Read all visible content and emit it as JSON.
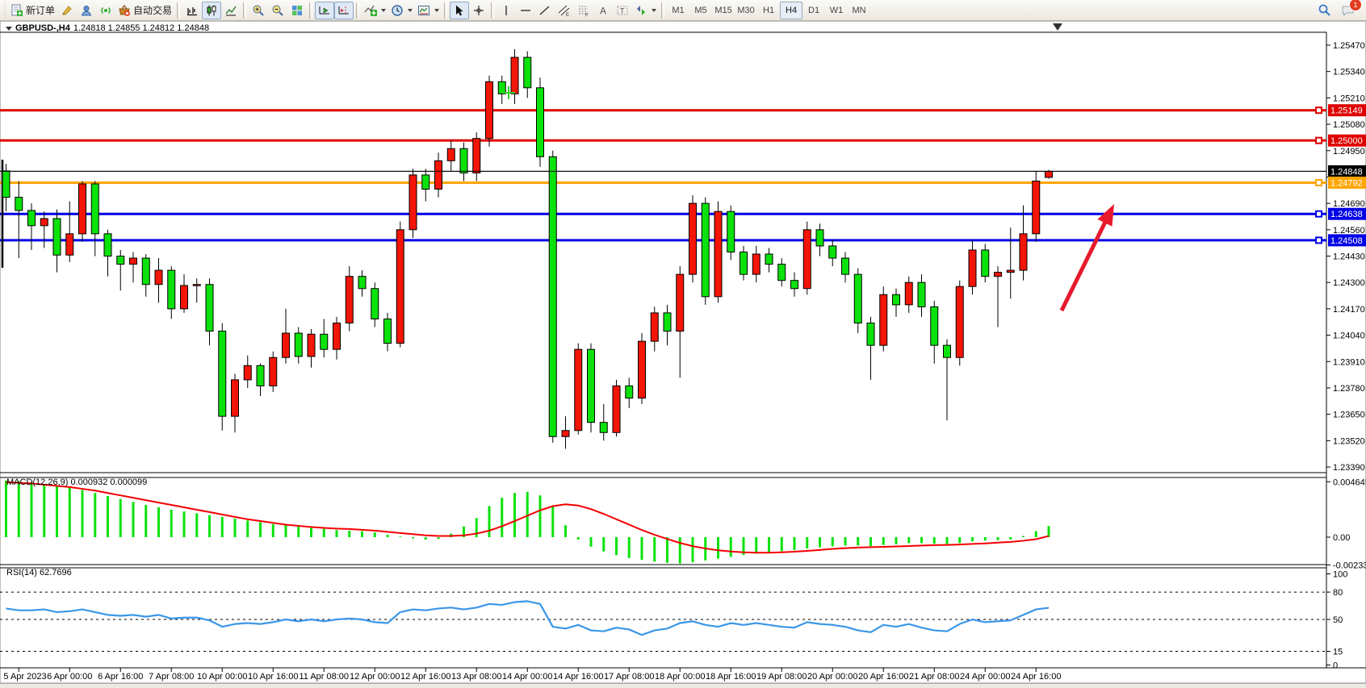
{
  "toolbar": {
    "new_order_label": "新订单",
    "autotrade_label": "自动交易",
    "timeframes": [
      "M1",
      "M5",
      "M15",
      "M30",
      "H1",
      "H4",
      "D1",
      "W1",
      "MN"
    ],
    "active_timeframe": "H4",
    "notification_count": "1"
  },
  "window": {
    "symbol_period": "GBPUSD-,H4",
    "ohlc_line": "1.24818 1.24855 1.24812 1.24848"
  },
  "chart_data": {
    "type": "candlestick",
    "symbol": "GBPUSD-",
    "timeframe": "H4",
    "title": "GBPUSD-,H4  1.24818 1.24855 1.24812 1.24848",
    "ohlc_display": {
      "open": 1.24818,
      "high": 1.24855,
      "low": 1.24812,
      "close": 1.24848
    },
    "bull_color": "#F31507",
    "bear_color": "#0BE20B",
    "ylim": [
      1.2339,
      1.2547
    ],
    "grid": false,
    "candles": [
      [
        "5 Apr 04:00",
        1.2485,
        1.24885,
        1.2465,
        1.2472
      ],
      [
        "5 Apr 08:00",
        1.2472,
        1.248,
        1.2442,
        1.24655
      ],
      [
        "5 Apr 12:00",
        1.24655,
        1.2469,
        1.2446,
        1.2458
      ],
      [
        "5 Apr 16:00",
        1.2458,
        1.2465,
        1.2447,
        1.24615
      ],
      [
        "5 Apr 20:00",
        1.24615,
        1.2466,
        1.2435,
        1.24435
      ],
      [
        "6 Apr 00:00",
        1.24435,
        1.247,
        1.244,
        1.2454
      ],
      [
        "6 Apr 04:00",
        1.2454,
        1.248,
        1.245,
        1.24786
      ],
      [
        "6 Apr 08:00",
        1.24786,
        1.248,
        1.2443,
        1.2454
      ],
      [
        "6 Apr 12:00",
        1.2454,
        1.2456,
        1.2433,
        1.2443
      ],
      [
        "6 Apr 16:00",
        1.2443,
        1.2446,
        1.2426,
        1.2439
      ],
      [
        "6 Apr 20:00",
        1.2439,
        1.2445,
        1.243,
        1.2442
      ],
      [
        "7 Apr 00:00",
        1.2442,
        1.2444,
        1.2423,
        1.2429
      ],
      [
        "7 Apr 04:00",
        1.2429,
        1.2442,
        1.242,
        1.2436
      ],
      [
        "7 Apr 08:00",
        1.2436,
        1.2438,
        1.2412,
        1.2417
      ],
      [
        "7 Apr 12:00",
        1.2417,
        1.2434,
        1.2415,
        1.24285
      ],
      [
        "7 Apr 16:00",
        1.24285,
        1.2432,
        1.242,
        1.2429
      ],
      [
        "7 Apr 20:00",
        1.2429,
        1.2432,
        1.2399,
        1.2406
      ],
      [
        "10 Apr 00:00",
        1.2406,
        1.241,
        1.2357,
        1.2364
      ],
      [
        "10 Apr 04:00",
        1.2364,
        1.2385,
        1.2356,
        1.2382
      ],
      [
        "10 Apr 08:00",
        1.2382,
        1.2394,
        1.2378,
        1.2389
      ],
      [
        "10 Apr 12:00",
        1.2389,
        1.239,
        1.2374,
        1.2379
      ],
      [
        "10 Apr 16:00",
        1.2379,
        1.2396,
        1.2376,
        1.2393
      ],
      [
        "10 Apr 20:00",
        1.2393,
        1.2417,
        1.239,
        1.2405
      ],
      [
        "11 Apr 00:00",
        1.2405,
        1.2408,
        1.239,
        1.23935
      ],
      [
        "11 Apr 04:00",
        1.23935,
        1.2407,
        1.2388,
        1.24045
      ],
      [
        "11 Apr 08:00",
        1.24045,
        1.2412,
        1.2393,
        1.2397
      ],
      [
        "11 Apr 12:00",
        1.2397,
        1.2413,
        1.2392,
        1.241
      ],
      [
        "11 Apr 16:00",
        1.241,
        1.2438,
        1.2406,
        1.2433
      ],
      [
        "11 Apr 20:00",
        1.2433,
        1.2436,
        1.2423,
        1.2427
      ],
      [
        "12 Apr 00:00",
        1.2427,
        1.243,
        1.2408,
        1.2412
      ],
      [
        "12 Apr 04:00",
        1.2412,
        1.2415,
        1.2396,
        1.24
      ],
      [
        "12 Apr 08:00",
        1.24,
        1.246,
        1.2398,
        1.2456
      ],
      [
        "12 Apr 12:00",
        1.2456,
        1.2486,
        1.2452,
        1.2483
      ],
      [
        "12 Apr 16:00",
        1.2483,
        1.2486,
        1.247,
        1.2476
      ],
      [
        "12 Apr 20:00",
        1.2476,
        1.2494,
        1.2472,
        1.249
      ],
      [
        "13 Apr 00:00",
        1.249,
        1.25,
        1.2485,
        1.2496
      ],
      [
        "13 Apr 04:00",
        1.2496,
        1.2499,
        1.248,
        1.2484
      ],
      [
        "13 Apr 08:00",
        1.2484,
        1.2504,
        1.248,
        1.2501
      ],
      [
        "13 Apr 12:00",
        1.2501,
        1.2532,
        1.2497,
        1.2529
      ],
      [
        "13 Apr 16:00",
        1.2529,
        1.2532,
        1.2518,
        1.2523
      ],
      [
        "13 Apr 20:00",
        1.2523,
        1.2545,
        1.2518,
        1.2541
      ],
      [
        "14 Apr 00:00",
        1.2541,
        1.2544,
        1.2521,
        1.2526
      ],
      [
        "14 Apr 04:00",
        1.2526,
        1.2531,
        1.2487,
        1.2492
      ],
      [
        "14 Apr 08:00",
        1.2492,
        1.2495,
        1.2351,
        1.2354
      ],
      [
        "14 Apr 12:00",
        1.2354,
        1.2364,
        1.2348,
        1.2357
      ],
      [
        "14 Apr 16:00",
        1.2357,
        1.24,
        1.2355,
        1.2397
      ],
      [
        "14 Apr 20:00",
        1.2397,
        1.24,
        1.2356,
        1.2361
      ],
      [
        "17 Apr 00:00",
        1.2361,
        1.237,
        1.2352,
        1.2356
      ],
      [
        "17 Apr 04:00",
        1.2356,
        1.2382,
        1.2354,
        1.2379
      ],
      [
        "17 Apr 08:00",
        1.2379,
        1.2383,
        1.2368,
        1.2373
      ],
      [
        "17 Apr 12:00",
        1.2373,
        1.2405,
        1.237,
        1.2401
      ],
      [
        "17 Apr 16:00",
        1.2401,
        1.2418,
        1.2396,
        1.2415
      ],
      [
        "17 Apr 20:00",
        1.2415,
        1.2419,
        1.2399,
        1.2406
      ],
      [
        "18 Apr 00:00",
        1.2406,
        1.2438,
        1.2383,
        1.2434
      ],
      [
        "18 Apr 04:00",
        1.2434,
        1.2473,
        1.243,
        1.2469
      ],
      [
        "18 Apr 08:00",
        1.2469,
        1.2472,
        1.2419,
        1.2423
      ],
      [
        "18 Apr 12:00",
        1.2423,
        1.247,
        1.242,
        1.2465
      ],
      [
        "18 Apr 16:00",
        1.2465,
        1.2468,
        1.2441,
        1.2445
      ],
      [
        "18 Apr 20:00",
        1.2445,
        1.2448,
        1.2431,
        1.2434
      ],
      [
        "19 Apr 00:00",
        1.2434,
        1.2448,
        1.243,
        1.2444
      ],
      [
        "19 Apr 04:00",
        1.2444,
        1.2447,
        1.2435,
        1.2439
      ],
      [
        "19 Apr 08:00",
        1.2439,
        1.2442,
        1.2428,
        1.2431
      ],
      [
        "19 Apr 12:00",
        1.2431,
        1.2435,
        1.2423,
        1.2427
      ],
      [
        "19 Apr 16:00",
        1.2427,
        1.246,
        1.2424,
        1.2456
      ],
      [
        "19 Apr 20:00",
        1.2456,
        1.2459,
        1.2443,
        1.2448
      ],
      [
        "20 Apr 00:00",
        1.2448,
        1.2451,
        1.2438,
        1.2442
      ],
      [
        "20 Apr 04:00",
        1.2442,
        1.2445,
        1.243,
        1.2434
      ],
      [
        "20 Apr 08:00",
        1.2434,
        1.2437,
        1.2405,
        1.241
      ],
      [
        "20 Apr 12:00",
        1.241,
        1.2413,
        1.2382,
        1.2399
      ],
      [
        "20 Apr 16:00",
        1.2399,
        1.2428,
        1.2396,
        1.2424
      ],
      [
        "20 Apr 20:00",
        1.2424,
        1.2427,
        1.2413,
        1.2419
      ],
      [
        "21 Apr 00:00",
        1.2419,
        1.2433,
        1.2415,
        1.243
      ],
      [
        "21 Apr 04:00",
        1.243,
        1.2434,
        1.2413,
        1.2418
      ],
      [
        "21 Apr 08:00",
        1.2418,
        1.2421,
        1.239,
        1.2399
      ],
      [
        "21 Apr 12:00",
        1.2399,
        1.2402,
        1.2362,
        1.2393
      ],
      [
        "21 Apr 16:00",
        1.2393,
        1.2431,
        1.2389,
        1.2428
      ],
      [
        "21 Apr 20:00",
        1.2428,
        1.2451,
        1.2424,
        1.2446
      ],
      [
        "24 Apr 00:00",
        1.2446,
        1.2449,
        1.243,
        1.2433
      ],
      [
        "24 Apr 04:00",
        1.2433,
        1.2438,
        1.2408,
        1.2435
      ],
      [
        "24 Apr 08:00",
        1.2435,
        1.2457,
        1.2422,
        1.2436
      ],
      [
        "24 Apr 12:00",
        1.2436,
        1.2468,
        1.2431,
        1.2454
      ],
      [
        "24 Apr 16:00",
        1.2454,
        1.2485,
        1.245,
        1.248
      ],
      [
        "24 Apr 20:00",
        1.24818,
        1.24855,
        1.24812,
        1.24848
      ]
    ],
    "hlines": [
      {
        "price": 1.25149,
        "color": "#DE0000",
        "width": 3,
        "label": "1.25149",
        "marker": true
      },
      {
        "price": 1.25,
        "color": "#DE0000",
        "width": 3,
        "label": "1.25000",
        "marker": true
      },
      {
        "price": 1.24848,
        "color": "#000000",
        "width": 1,
        "label": "1.24848",
        "marker": false,
        "current": true
      },
      {
        "price": 1.24792,
        "color": "#FFA500",
        "width": 3,
        "label": "1.24792",
        "marker": true
      },
      {
        "price": 1.24638,
        "color": "#0000E6",
        "width": 3,
        "label": "1.24638",
        "marker": true
      },
      {
        "price": 1.24508,
        "color": "#0000E6",
        "width": 3,
        "label": "1.24508",
        "marker": true
      }
    ],
    "y_axis_ticks": [
      "1.25470",
      "1.25340",
      "1.25210",
      "1.25080",
      "1.24950",
      "1.24820",
      "1.24690",
      "1.24560",
      "1.24430",
      "1.24300",
      "1.24170",
      "1.24040",
      "1.23910",
      "1.23780",
      "1.23650",
      "1.23520",
      "1.23390"
    ],
    "x_axis_labels": [
      {
        "index": 1,
        "label": "5 Apr 2023"
      },
      {
        "index": 5,
        "label": "6 Apr 00:00"
      },
      {
        "index": 9,
        "label": "6 Apr 16:00"
      },
      {
        "index": 13,
        "label": "7 Apr 08:00"
      },
      {
        "index": 17,
        "label": "10 Apr 00:00"
      },
      {
        "index": 21,
        "label": "10 Apr 16:00"
      },
      {
        "index": 25,
        "label": "11 Apr 08:00"
      },
      {
        "index": 29,
        "label": "12 Apr 00:00"
      },
      {
        "index": 33,
        "label": "12 Apr 16:00"
      },
      {
        "index": 37,
        "label": "13 Apr 08:00"
      },
      {
        "index": 41,
        "label": "14 Apr 00:00"
      },
      {
        "index": 45,
        "label": "14 Apr 16:00"
      },
      {
        "index": 49,
        "label": "17 Apr 08:00"
      },
      {
        "index": 53,
        "label": "18 Apr 00:00"
      },
      {
        "index": 57,
        "label": "18 Apr 16:00"
      },
      {
        "index": 61,
        "label": "19 Apr 08:00"
      },
      {
        "index": 65,
        "label": "20 Apr 00:00"
      },
      {
        "index": 69,
        "label": "20 Apr 16:00"
      },
      {
        "index": 73,
        "label": "21 Apr 08:00"
      },
      {
        "index": 77,
        "label": "24 Apr 00:00"
      },
      {
        "index": 81,
        "label": "24 Apr 16:00"
      }
    ],
    "macd": {
      "label": "MACD(12,26,9) 0.000932 0.000099",
      "params": "12,26,9",
      "value": 0.000932,
      "signal_value": 9.9e-05,
      "hist_color": "#0BE20B",
      "signal_color": "#F40000",
      "ticks": [
        "0.004645",
        "0.00",
        "-0.00233"
      ],
      "histogram": [
        0.00475,
        0.0047,
        0.0046,
        0.00445,
        0.0043,
        0.00415,
        0.00395,
        0.0037,
        0.00345,
        0.0032,
        0.00295,
        0.0027,
        0.0025,
        0.0023,
        0.00215,
        0.002,
        0.00185,
        0.0017,
        0.00155,
        0.0014,
        0.00125,
        0.0011,
        0.001,
        0.0009,
        0.0008,
        0.0007,
        0.0006,
        0.00055,
        0.0005,
        0.0004,
        0.0002,
        5e-05,
        -0.0001,
        -0.0002,
        -0.00015,
        0.0003,
        0.0009,
        0.0016,
        0.0026,
        0.0033,
        0.0037,
        0.0038,
        0.0035,
        0.0026,
        0.001,
        -0.0002,
        -0.0008,
        -0.0012,
        -0.0015,
        -0.00175,
        -0.0019,
        -0.00205,
        -0.00215,
        -0.0022,
        -0.0021,
        -0.00195,
        -0.0018,
        -0.00165,
        -0.0015,
        -0.00138,
        -0.00127,
        -0.00117,
        -0.00108,
        -0.00095,
        -0.00085,
        -0.00077,
        -0.0007,
        -0.0007,
        -0.00075,
        -0.00065,
        -0.0006,
        -0.0005,
        -0.0005,
        -0.00055,
        -0.0006,
        -0.0005,
        -0.00035,
        -0.00028,
        -0.00025,
        -0.0002,
        0.0001,
        0.0005,
        0.000932
      ],
      "signal": [
        0.0046,
        0.00455,
        0.0045,
        0.0044,
        0.0043,
        0.0042,
        0.00405,
        0.0039,
        0.0037,
        0.0035,
        0.0033,
        0.0031,
        0.0029,
        0.0027,
        0.0025,
        0.0023,
        0.0021,
        0.0019,
        0.0017,
        0.0015,
        0.00135,
        0.0012,
        0.00105,
        0.00095,
        0.00085,
        0.00078,
        0.00072,
        0.00068,
        0.00062,
        0.00055,
        0.00045,
        0.00035,
        0.00025,
        0.00015,
        0.0001,
        0.0001,
        0.00015,
        0.0003,
        0.00055,
        0.00092,
        0.00135,
        0.0018,
        0.00225,
        0.0026,
        0.00275,
        0.00265,
        0.00235,
        0.00195,
        0.0015,
        0.00105,
        0.0006,
        0.0002,
        -0.00015,
        -0.00048,
        -0.00075,
        -0.00095,
        -0.0011,
        -0.0012,
        -0.00127,
        -0.0013,
        -0.0013,
        -0.00127,
        -0.00122,
        -0.00115,
        -0.00107,
        -0.00098,
        -0.00092,
        -0.00087,
        -0.00084,
        -0.00081,
        -0.00078,
        -0.00074,
        -0.0007,
        -0.00067,
        -0.00065,
        -0.00062,
        -0.00057,
        -0.00052,
        -0.00046,
        -0.0004,
        -0.0003,
        -0.00017,
        9.9e-05
      ]
    },
    "rsi": {
      "label": "RSI(14) 62.7696",
      "period": 14,
      "value": 62.7696,
      "color": "#3A97E8",
      "levels": [
        100,
        80,
        50,
        15,
        0
      ],
      "dashed_levels": [
        80,
        50,
        15
      ],
      "values": [
        62,
        60,
        60,
        61,
        58,
        59,
        61,
        58,
        55,
        54,
        55,
        53,
        55,
        51,
        52,
        52,
        49,
        42,
        45,
        46,
        45,
        47,
        50,
        48,
        50,
        48,
        50,
        51,
        50,
        47,
        46,
        58,
        61,
        60,
        62,
        63,
        61,
        63,
        67,
        66,
        69,
        70,
        67,
        42,
        40,
        44,
        38,
        37,
        41,
        39,
        33,
        38,
        40,
        46,
        48,
        44,
        42,
        46,
        44,
        46,
        44,
        42,
        41,
        47,
        45,
        44,
        42,
        38,
        36,
        44,
        42,
        45,
        41,
        38,
        37,
        45,
        50,
        47,
        48,
        49,
        55,
        61,
        62.77
      ]
    },
    "annotations": {
      "arrow": {
        "from": [
          1315,
          385
        ],
        "to": [
          1380,
          253
        ],
        "color": "#E8192C"
      },
      "plus_marker": {
        "x": 630,
        "y": 115,
        "color": "#2BD32B"
      },
      "shift_marker_x": 1310
    }
  }
}
